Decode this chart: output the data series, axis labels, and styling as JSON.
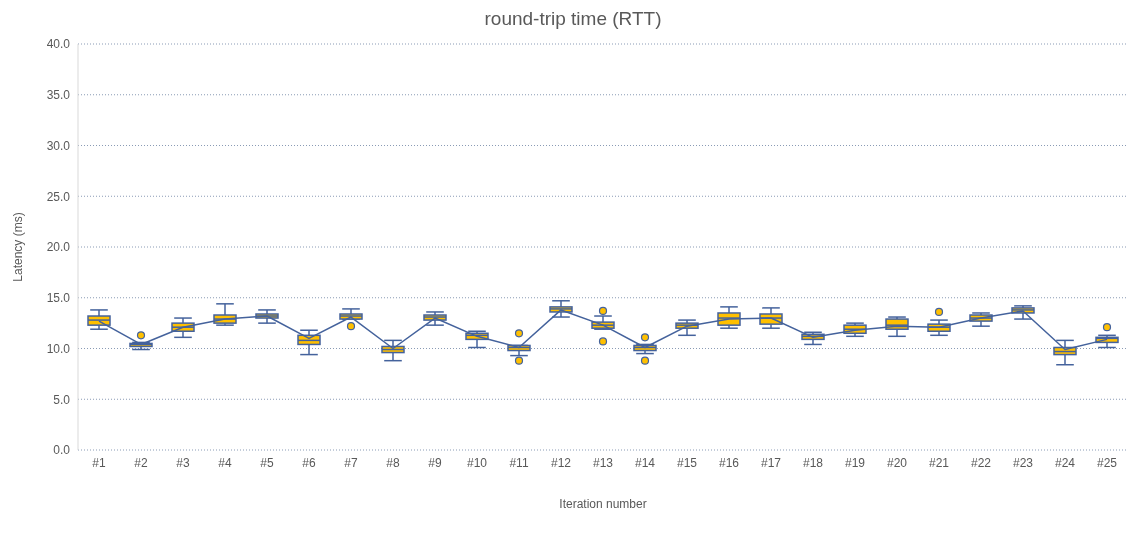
{
  "chart_data": {
    "type": "box",
    "title": "round-trip time (RTT)",
    "xlabel": "Iteration number",
    "ylabel": "Latency (ms)",
    "categories": [
      "#1",
      "#2",
      "#3",
      "#4",
      "#5",
      "#6",
      "#7",
      "#8",
      "#9",
      "#10",
      "#11",
      "#12",
      "#13",
      "#14",
      "#15",
      "#16",
      "#17",
      "#18",
      "#19",
      "#20",
      "#21",
      "#22",
      "#23",
      "#24",
      "#25"
    ],
    "color": "#ffc000",
    "series": [
      {
        "type": "line",
        "color": "#44629c",
        "values": [
          12.7,
          10.4,
          12.1,
          12.9,
          13.2,
          11.0,
          13.1,
          10.0,
          13.0,
          11.2,
          10.1,
          13.8,
          12.3,
          10.1,
          12.2,
          12.9,
          13.0,
          11.1,
          11.8,
          12.2,
          12.1,
          13.0,
          13.7,
          9.9,
          10.9
        ]
      }
    ],
    "boxes": [
      {
        "low": 11.9,
        "q1": 12.3,
        "median": 12.8,
        "q3": 13.2,
        "high": 13.8
      },
      {
        "low": 9.9,
        "q1": 10.2,
        "median": 10.4,
        "q3": 10.5,
        "high": 10.6,
        "outliers": [
          11.3
        ]
      },
      {
        "low": 11.1,
        "q1": 11.7,
        "median": 12.1,
        "q3": 12.5,
        "high": 13.0
      },
      {
        "low": 12.3,
        "q1": 12.5,
        "median": 12.9,
        "q3": 13.3,
        "high": 14.4
      },
      {
        "low": 12.5,
        "q1": 13.0,
        "median": 13.2,
        "q3": 13.4,
        "high": 13.8
      },
      {
        "low": 9.4,
        "q1": 10.4,
        "median": 10.8,
        "q3": 11.3,
        "high": 11.8
      },
      {
        "low": 12.9,
        "q1": 12.9,
        "median": 13.2,
        "q3": 13.4,
        "high": 13.9,
        "outliers": [
          12.2
        ]
      },
      {
        "low": 8.8,
        "q1": 9.6,
        "median": 9.9,
        "q3": 10.2,
        "high": 10.8
      },
      {
        "low": 12.3,
        "q1": 12.8,
        "median": 13.1,
        "q3": 13.3,
        "high": 13.6
      },
      {
        "low": 10.1,
        "q1": 10.9,
        "median": 11.3,
        "q3": 11.5,
        "high": 11.7
      },
      {
        "low": 9.3,
        "q1": 9.8,
        "median": 10.1,
        "q3": 10.3,
        "high": 10.3,
        "outliers": [
          11.5,
          8.8
        ]
      },
      {
        "low": 13.1,
        "q1": 13.6,
        "median": 13.9,
        "q3": 14.1,
        "high": 14.7
      },
      {
        "low": 11.9,
        "q1": 12.0,
        "median": 12.3,
        "q3": 12.6,
        "high": 13.2,
        "outliers": [
          13.7,
          10.7
        ]
      },
      {
        "low": 9.5,
        "q1": 9.8,
        "median": 10.1,
        "q3": 10.3,
        "high": 10.4,
        "outliers": [
          11.1,
          8.8
        ]
      },
      {
        "low": 11.3,
        "q1": 12.0,
        "median": 12.3,
        "q3": 12.5,
        "high": 12.8
      },
      {
        "low": 12.0,
        "q1": 12.3,
        "median": 13.0,
        "q3": 13.5,
        "high": 14.1
      },
      {
        "low": 12.0,
        "q1": 12.4,
        "median": 13.0,
        "q3": 13.4,
        "high": 14.0
      },
      {
        "low": 10.4,
        "q1": 10.9,
        "median": 11.2,
        "q3": 11.4,
        "high": 11.6
      },
      {
        "low": 11.2,
        "q1": 11.5,
        "median": 11.9,
        "q3": 12.3,
        "high": 12.5
      },
      {
        "low": 11.2,
        "q1": 11.9,
        "median": 12.3,
        "q3": 12.9,
        "high": 13.1
      },
      {
        "low": 11.3,
        "q1": 11.7,
        "median": 12.1,
        "q3": 12.4,
        "high": 12.8,
        "outliers": [
          13.6
        ]
      },
      {
        "low": 12.2,
        "q1": 12.7,
        "median": 13.0,
        "q3": 13.3,
        "high": 13.5
      },
      {
        "low": 12.9,
        "q1": 13.5,
        "median": 13.8,
        "q3": 14.0,
        "high": 14.2
      },
      {
        "low": 8.4,
        "q1": 9.4,
        "median": 9.7,
        "q3": 10.1,
        "high": 10.8
      },
      {
        "low": 10.1,
        "q1": 10.6,
        "median": 11.0,
        "q3": 11.1,
        "high": 11.3,
        "outliers": [
          12.1
        ]
      }
    ],
    "ylim": [
      0,
      40
    ],
    "yticks": [
      {
        "value": 0,
        "label": "0.0"
      },
      {
        "value": 5,
        "label": "5.0"
      },
      {
        "value": 10,
        "label": "10.0"
      },
      {
        "value": 15,
        "label": "15.0"
      },
      {
        "value": 20,
        "label": "20.0"
      },
      {
        "value": 25,
        "label": "25.0"
      },
      {
        "value": 30,
        "label": "30.0"
      },
      {
        "value": 35,
        "label": "35.0"
      },
      {
        "value": 40,
        "label": "40.0"
      }
    ],
    "grid": "y"
  }
}
